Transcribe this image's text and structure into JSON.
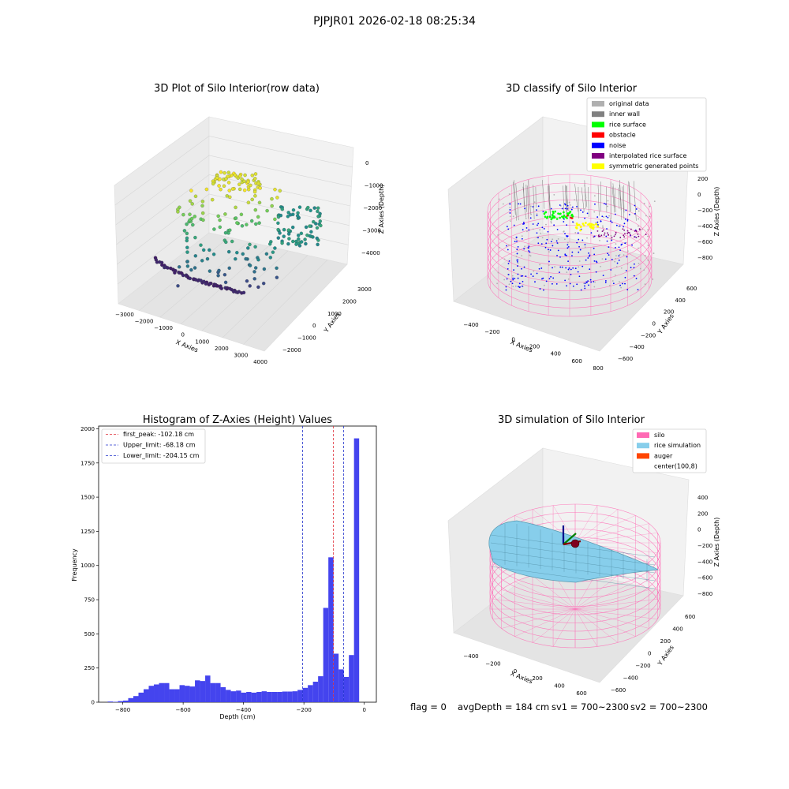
{
  "figure": {
    "suptitle": "PJPJR01 2026-02-18 08:25:34",
    "footer": {
      "flag": "flag = 0",
      "avg_depth": "avgDepth = 184 cm",
      "sv1": "sv1 = 700~2300",
      "sv2": "sv2 = 700~2300"
    }
  },
  "colors": {
    "hist_bar": "#4444ee",
    "first_peak_line": "#e0303a",
    "limit_line": "#2233cc",
    "silo": "#ff69b4",
    "rice_simulation": "#87ceeb",
    "auger": "#ff4500",
    "original": "#b0b0b0",
    "inner_wall": "#808080",
    "rice_surface": "#00ff00",
    "obstacle": "#ff0000",
    "noise": "#0000ff",
    "interp_surface": "#800080",
    "symmetric": "#ffff00"
  },
  "chart_data": [
    {
      "type": "scatter",
      "title": "3D Plot of Silo Interior(row data)",
      "xlabel": "X Axies",
      "ylabel": "Y Axies",
      "zlabel": "Z Axies (Depth)",
      "x_ticks": [
        "−3000",
        "−2000",
        "−1000",
        "0",
        "1000",
        "2000",
        "3000",
        "4000"
      ],
      "y_ticks": [
        "−2000",
        "−1000",
        "0",
        "1000",
        "2000",
        "3000"
      ],
      "z_ticks": [
        "0",
        "−1000",
        "−2000",
        "−3000",
        "−4000"
      ],
      "xlim": [
        -3000,
        4000
      ],
      "ylim": [
        -2000,
        3000
      ],
      "zlim": [
        -4000,
        0
      ],
      "colormap": "viridis"
    },
    {
      "type": "scatter",
      "title": "3D classify of Silo Interior",
      "xlabel": "X Axies",
      "ylabel": "Y Axies",
      "zlabel": "Z Axies (Depth)",
      "x_ticks": [
        "−400",
        "−200",
        "0",
        "200",
        "400",
        "600",
        "800"
      ],
      "y_ticks": [
        "−600",
        "−400",
        "−200",
        "0",
        "200",
        "400",
        "600"
      ],
      "z_ticks": [
        "200",
        "0",
        "−200",
        "−400",
        "−600",
        "−800"
      ],
      "legend_position": "top-right",
      "legend": [
        {
          "label": "original data",
          "color": "#b0b0b0"
        },
        {
          "label": "inner wall",
          "color": "#808080"
        },
        {
          "label": "rice surface",
          "color": "#00ff00"
        },
        {
          "label": "obstacle",
          "color": "#ff0000"
        },
        {
          "label": "noise",
          "color": "#0000ff"
        },
        {
          "label": "interpolated rice surface",
          "color": "#800080"
        },
        {
          "label": "symmetric generated points",
          "color": "#ffff00"
        }
      ]
    },
    {
      "type": "bar",
      "title": "Histogram of Z-Axies (Height) Values",
      "xlabel": "Depth (cm)",
      "ylabel": "Frequency",
      "xlim": [
        -880,
        40
      ],
      "ylim": [
        0,
        2020
      ],
      "x_ticks": [
        -800,
        -600,
        -400,
        -200,
        0
      ],
      "y_ticks": [
        0,
        250,
        500,
        750,
        1000,
        1250,
        1500,
        1750,
        2000
      ],
      "bin_start": -850,
      "bin_width": 17,
      "values": [
        5,
        3,
        8,
        12,
        30,
        45,
        70,
        95,
        120,
        130,
        140,
        140,
        95,
        95,
        125,
        120,
        115,
        160,
        155,
        195,
        140,
        140,
        110,
        90,
        80,
        85,
        70,
        75,
        70,
        75,
        80,
        75,
        75,
        75,
        78,
        78,
        80,
        90,
        105,
        125,
        150,
        190,
        690,
        1060,
        355,
        240,
        185,
        345,
        1930
      ],
      "legend_position": "top-left",
      "vlines": [
        {
          "name": "first_peak: -102.18 cm",
          "x": -102.18,
          "color": "#e0303a"
        },
        {
          "name": "Upper_limit: -68.18 cm",
          "x": -68.18,
          "color": "#2233cc"
        },
        {
          "name": "Lower_limit: -204.15 cm",
          "x": -204.15,
          "color": "#2233cc"
        }
      ]
    },
    {
      "type": "area",
      "title": "3D simulation of Silo Interior",
      "xlabel": "X Axies",
      "ylabel": "Y Axies",
      "zlabel": "Z Axies (Depth)",
      "x_ticks": [
        "−400",
        "−200",
        "0",
        "200",
        "400",
        "600"
      ],
      "y_ticks": [
        "−600",
        "−400",
        "−200",
        "0",
        "200",
        "400",
        "600"
      ],
      "z_ticks": [
        "400",
        "200",
        "0",
        "−200",
        "−400",
        "−600",
        "−800"
      ],
      "legend_position": "top-right",
      "legend": [
        {
          "label": "silo",
          "color": "#ff69b4"
        },
        {
          "label": "rice simulation",
          "color": "#87ceeb"
        },
        {
          "label": "auger",
          "color": "#ff4500"
        },
        {
          "label": "center(100,8)",
          "color": ""
        }
      ]
    }
  ]
}
